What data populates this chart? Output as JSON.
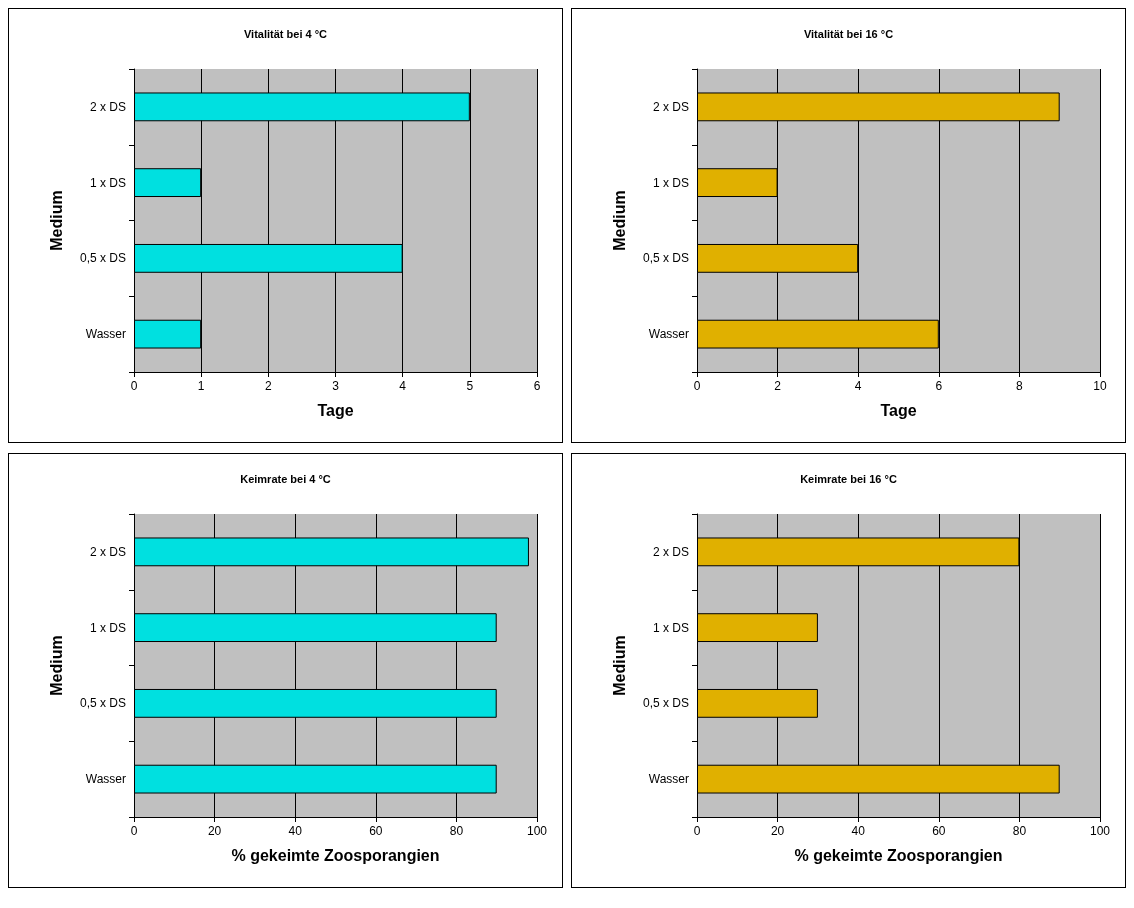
{
  "chart_data": [
    {
      "type": "bar",
      "orientation": "horizontal",
      "title": "Vitalität bei 4 °C",
      "xlabel": "Tage",
      "ylabel": "Medium",
      "categories": [
        "2 x DS",
        "1 x DS",
        "0,5 x DS",
        "Wasser"
      ],
      "values": [
        5,
        1,
        4,
        1
      ],
      "color": "#00e0e0",
      "xlim": [
        0,
        6
      ],
      "xticks": [
        0,
        1,
        2,
        3,
        4,
        5,
        6
      ],
      "grid": "x"
    },
    {
      "type": "bar",
      "orientation": "horizontal",
      "title": "Vitalität bei 16 °C",
      "xlabel": "Tage",
      "ylabel": "Medium",
      "categories": [
        "2 x DS",
        "1 x DS",
        "0,5 x DS",
        "Wasser"
      ],
      "values": [
        9,
        2,
        4,
        6
      ],
      "color": "#e0b000",
      "xlim": [
        0,
        10
      ],
      "xticks": [
        0,
        2,
        4,
        6,
        8,
        10
      ],
      "grid": "x"
    },
    {
      "type": "bar",
      "orientation": "horizontal",
      "title": "Keimrate bei 4 °C",
      "xlabel": "% gekeimte Zoosporangien",
      "ylabel": "Medium",
      "categories": [
        "2 x DS",
        "1 x DS",
        "0,5 x DS",
        "Wasser"
      ],
      "values": [
        98,
        90,
        90,
        90
      ],
      "color": "#00e0e0",
      "xlim": [
        0,
        100
      ],
      "xticks": [
        0,
        20,
        40,
        60,
        80,
        100
      ],
      "grid": "x"
    },
    {
      "type": "bar",
      "orientation": "horizontal",
      "title": "Keimrate bei 16 °C",
      "xlabel": "% gekeimte Zoosporangien",
      "ylabel": "Medium",
      "categories": [
        "2 x DS",
        "1 x DS",
        "0,5 x DS",
        "Wasser"
      ],
      "values": [
        80,
        30,
        30,
        90
      ],
      "color": "#e0b000",
      "xlim": [
        0,
        100
      ],
      "xticks": [
        0,
        20,
        40,
        60,
        80,
        100
      ],
      "grid": "x"
    }
  ]
}
